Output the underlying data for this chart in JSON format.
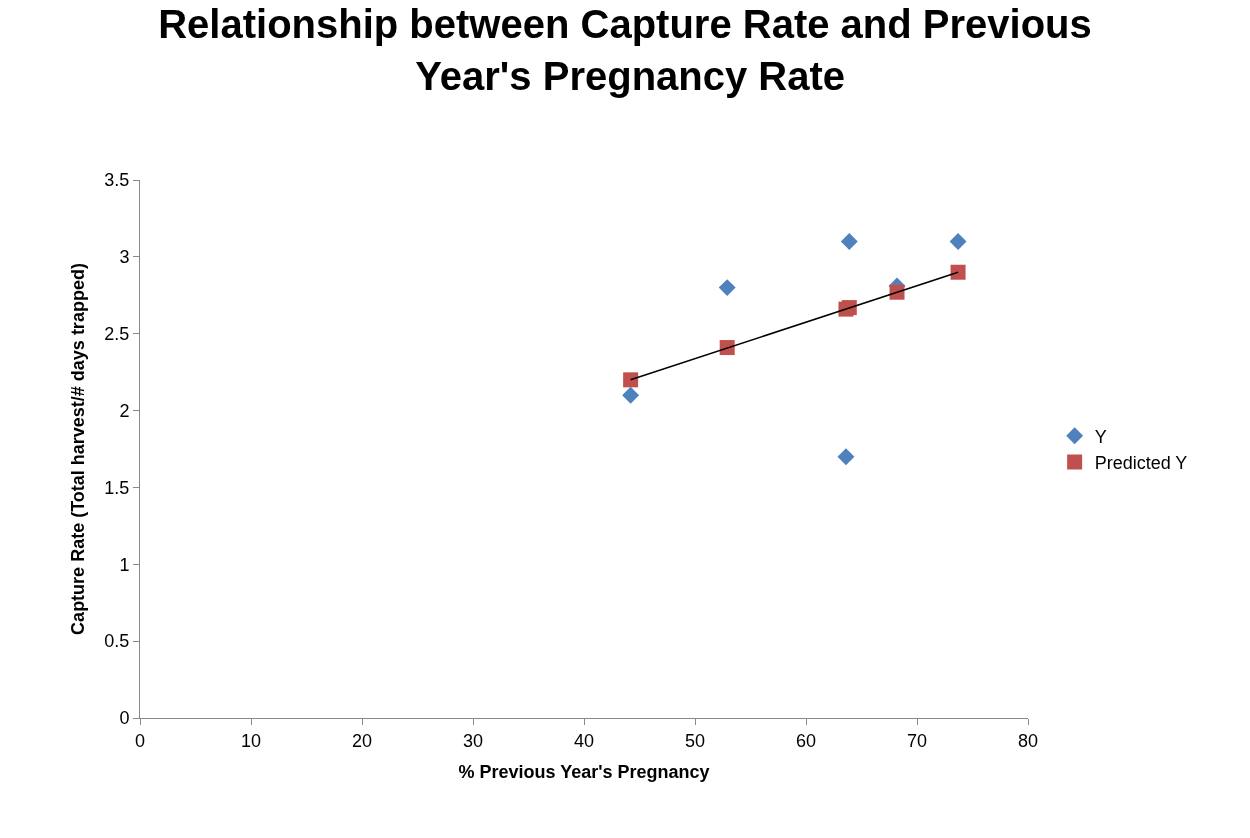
{
  "chart_data": {
    "type": "scatter",
    "title": "Relationship between Capture Rate and Previous Year's Pregnancy Rate",
    "xlabel": "% Previous Year's Pregnancy",
    "ylabel": "Capture Rate (Total harvest/# days trapped)",
    "x": [
      44.2,
      52.9,
      63.9,
      63.6,
      68.2,
      73.7
    ],
    "series": [
      {
        "name": "Y",
        "color": "#4f81bd",
        "marker": "diamond",
        "values": [
          2.1,
          2.8,
          3.1,
          1.7,
          2.81,
          3.1
        ]
      },
      {
        "name": "Predicted Y",
        "color": "#c0504d",
        "marker": "square",
        "values": [
          2.2,
          2.41,
          2.67,
          2.66,
          2.77,
          2.9
        ]
      },
      {
        "type": "line",
        "color": "#000000",
        "marker": "none",
        "x": [
          44.2,
          73.7
        ],
        "values": [
          2.2,
          2.9
        ]
      }
    ],
    "xlim": [
      0,
      80
    ],
    "xticks": [
      0,
      10,
      20,
      30,
      40,
      50,
      60,
      70,
      80
    ],
    "ylim": [
      0,
      3.5
    ],
    "yticks": [
      0,
      0.5,
      1,
      1.5,
      2,
      2.5,
      3,
      3.5
    ],
    "legend": "right"
  }
}
